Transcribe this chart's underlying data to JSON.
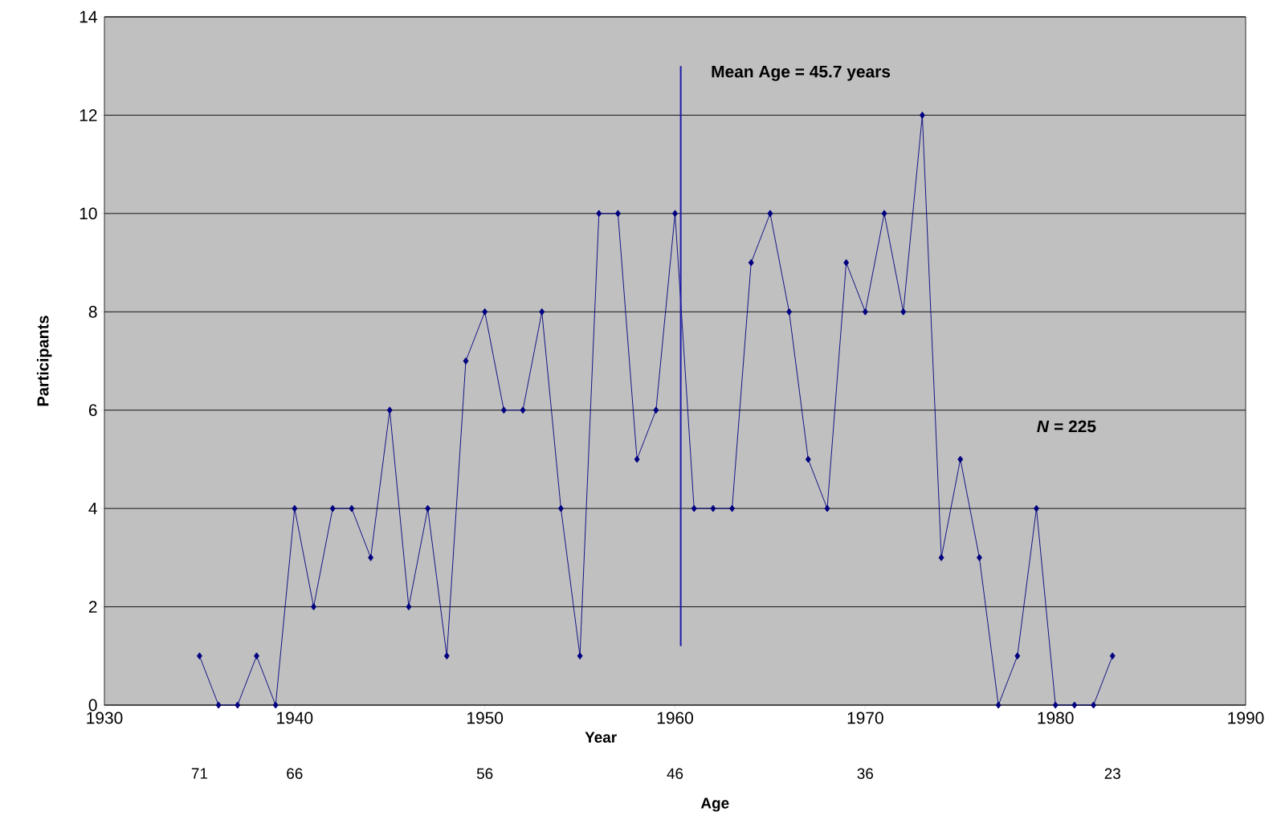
{
  "chart_data": {
    "type": "line",
    "xlabel": "Year",
    "ylabel": "Participants",
    "x2label": "Age",
    "x": [
      1935,
      1936,
      1937,
      1938,
      1939,
      1940,
      1941,
      1942,
      1943,
      1944,
      1945,
      1946,
      1947,
      1948,
      1949,
      1950,
      1951,
      1952,
      1953,
      1954,
      1955,
      1956,
      1957,
      1958,
      1959,
      1960,
      1961,
      1962,
      1963,
      1964,
      1965,
      1966,
      1967,
      1968,
      1969,
      1970,
      1971,
      1972,
      1973,
      1974,
      1975,
      1976,
      1977,
      1978,
      1979,
      1980,
      1981,
      1982,
      1983
    ],
    "series": [
      {
        "color": "#000080",
        "values": [
          1,
          0,
          0,
          1,
          0,
          4,
          2,
          4,
          4,
          3,
          6,
          2,
          4,
          1,
          7,
          8,
          6,
          6,
          8,
          4,
          1,
          10,
          10,
          5,
          6,
          10,
          4,
          4,
          4,
          9,
          10,
          8,
          5,
          4,
          9,
          8,
          10,
          8,
          12,
          3,
          5,
          3,
          0,
          1,
          4,
          0,
          0,
          0,
          1
        ]
      }
    ],
    "xlim": [
      1930,
      1990
    ],
    "xticks": [
      1930,
      1940,
      1950,
      1960,
      1970,
      1980,
      1990
    ],
    "ylim": [
      0,
      14
    ],
    "yticks": [
      0,
      2,
      4,
      6,
      8,
      10,
      12,
      14
    ],
    "x2lim": [
      76,
      16
    ],
    "x2ticks": [
      71,
      66,
      56,
      46,
      36,
      23
    ],
    "ref_lines": [
      {
        "axis": "x2",
        "value": 45.7,
        "label": "Mean Age = 45.7 years",
        "color": "#1c1ca8"
      }
    ],
    "annotations": [
      "*N* = 225"
    ],
    "grid": "y",
    "marker": "diamond",
    "line_style": "solid"
  }
}
